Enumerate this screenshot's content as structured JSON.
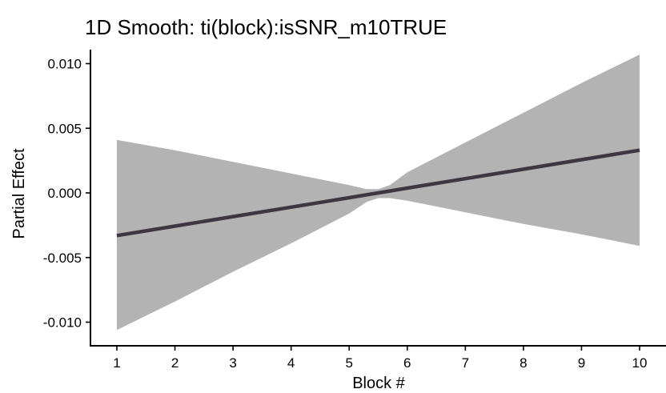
{
  "chart_data": {
    "type": "line",
    "title": "1D Smooth: ti(block):isSNR_m10TRUE",
    "xlabel": "Block #",
    "ylabel": "Partial Effect",
    "xlim": [
      0.55,
      10.3
    ],
    "ylim": [
      -0.0118,
      0.0113
    ],
    "x_ticks": [
      1,
      2,
      3,
      4,
      5,
      6,
      7,
      8,
      9,
      10
    ],
    "x_tick_labels": [
      "1",
      "2",
      "3",
      "4",
      "5",
      "6",
      "7",
      "8",
      "9",
      "10"
    ],
    "y_ticks": [
      -0.01,
      -0.005,
      0,
      0.005,
      0.01
    ],
    "y_tick_labels": [
      "-0.010",
      "-0.005",
      "0.000",
      "0.005",
      "0.010"
    ],
    "grid": false,
    "legend": "none",
    "series": [
      {
        "x": [
          1,
          2,
          3,
          4,
          5,
          5.3,
          5.5,
          5.7,
          6,
          7,
          8,
          9,
          10
        ],
        "fit": [
          -0.0033,
          -0.00257,
          -0.00183,
          -0.0011,
          -0.00037,
          -0.00015,
          0,
          0.00015,
          0.00037,
          0.0011,
          0.00183,
          0.00257,
          0.0033
        ],
        "lower": [
          -0.0106,
          -0.0084,
          -0.0061,
          -0.0039,
          -0.0016,
          -0.0007,
          -0.0004,
          -0.0004,
          -0.0006,
          -0.0015,
          -0.0024,
          -0.0032,
          -0.0041
        ],
        "upper": [
          0.0041,
          0.0033,
          0.0024,
          0.0015,
          0.0006,
          0.0003,
          0.0003,
          0.0006,
          0.0016,
          0.0039,
          0.0062,
          0.0085,
          0.0107
        ]
      }
    ],
    "colors": {
      "band": "#b3b3b3",
      "line": "#3d3742",
      "axis": "#000000"
    }
  }
}
